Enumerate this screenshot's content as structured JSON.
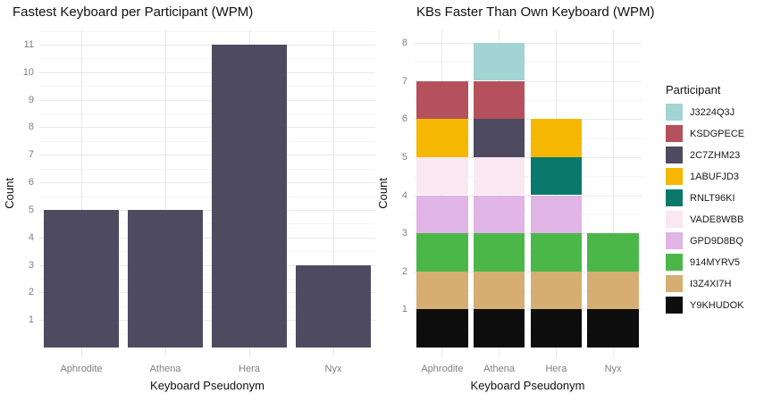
{
  "style": {
    "background": "#ffffff",
    "grid_major_color": "#e8e8e8",
    "grid_minor_color": "#f4f4f4",
    "tick_label_color": "#7f7f7f",
    "text_color": "#111111"
  },
  "chart_data": [
    {
      "id": "fastest-keyboard-per-participant",
      "type": "bar",
      "title": "Fastest Keyboard per Participant (WPM)",
      "xlabel": "Keyboard Pseudonym",
      "ylabel": "Count",
      "categories": [
        "Aphrodite",
        "Athena",
        "Hera",
        "Nyx"
      ],
      "values": [
        5,
        5,
        11,
        3
      ],
      "bar_color": "#4e4a60",
      "yticks": [
        1,
        2,
        3,
        4,
        5,
        6,
        7,
        8,
        9,
        10,
        11
      ],
      "ylim": [
        0,
        11.55
      ],
      "grid": true,
      "legend_position": "none"
    },
    {
      "id": "kbs-faster-than-own-keyboard",
      "type": "bar",
      "subtype": "stacked",
      "title": "KBs Faster Than Own Keyboard (WPM)",
      "xlabel": "Keyboard Pseudonym",
      "ylabel": "Count",
      "categories": [
        "Aphrodite",
        "Athena",
        "Hera",
        "Nyx"
      ],
      "stack_totals": [
        7,
        8,
        6,
        3
      ],
      "stack_note": "series listed in legend order; first series renders at top of stack, last at bottom",
      "series": [
        {
          "name": "J3224Q3J",
          "color": "#a2d4d3",
          "values": [
            0,
            1,
            0,
            0
          ]
        },
        {
          "name": "KSDGPECE",
          "color": "#b4515c",
          "values": [
            1,
            1,
            0,
            0
          ]
        },
        {
          "name": "2C7ZHM23",
          "color": "#4e4a60",
          "values": [
            0,
            1,
            0,
            0
          ]
        },
        {
          "name": "1ABUFJD3",
          "color": "#f5b700",
          "values": [
            1,
            0,
            1,
            0
          ]
        },
        {
          "name": "RNLT96KI",
          "color": "#0a796c",
          "values": [
            0,
            0,
            1,
            0
          ]
        },
        {
          "name": "VADE8WBB",
          "color": "#f9e7f2",
          "values": [
            1,
            1,
            0,
            0
          ]
        },
        {
          "name": "GPD9D8BQ",
          "color": "#e0b4e4",
          "values": [
            1,
            1,
            1,
            0
          ]
        },
        {
          "name": "914MYRV5",
          "color": "#4cb749",
          "values": [
            1,
            1,
            1,
            1
          ]
        },
        {
          "name": "I3Z4XI7H",
          "color": "#d6ad72",
          "values": [
            1,
            1,
            1,
            1
          ]
        },
        {
          "name": "Y9KHUDOK",
          "color": "#0d0d0d",
          "values": [
            1,
            1,
            1,
            1
          ]
        }
      ],
      "yticks": [
        1,
        2,
        3,
        4,
        5,
        6,
        7,
        8
      ],
      "ylim": [
        0,
        8.35
      ],
      "grid": true,
      "legend_title": "Participant",
      "legend_position": "right"
    }
  ]
}
